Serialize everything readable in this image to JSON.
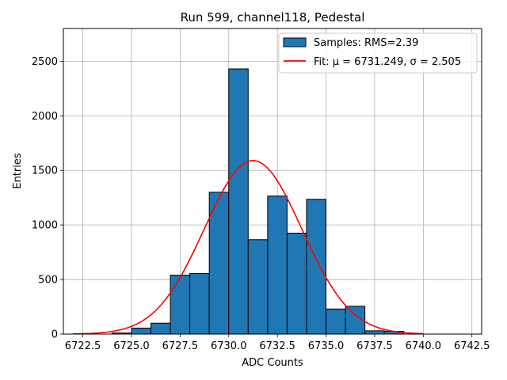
{
  "chart_data": {
    "type": "bar",
    "title": "Run 599, channel118, Pedestal",
    "xlabel": "ADC Counts",
    "ylabel": "Entries",
    "xlim": [
      6721.5,
      6743.0
    ],
    "ylim": [
      0,
      2800
    ],
    "xticks": [
      6722.5,
      6725.0,
      6727.5,
      6730.0,
      6732.5,
      6735.0,
      6737.5,
      6740.0,
      6742.5
    ],
    "xtick_labels": [
      "6722.5",
      "6725.0",
      "6727.5",
      "6730.0",
      "6732.5",
      "6735.0",
      "6737.5",
      "6740.0",
      "6742.5"
    ],
    "yticks": [
      0,
      500,
      1000,
      1500,
      2000,
      2500
    ],
    "ytick_labels": [
      "0",
      "500",
      "1000",
      "1500",
      "2000",
      "2500"
    ],
    "grid": true,
    "legend_position": "top-right",
    "series": [
      {
        "name": "Samples: RMS=2.39",
        "kind": "histogram",
        "color": "#1f77b4",
        "bins": [
          {
            "x0": 6724.0,
            "x1": 6725.0,
            "value": 10
          },
          {
            "x0": 6725.0,
            "x1": 6726.0,
            "value": 55
          },
          {
            "x0": 6726.0,
            "x1": 6727.0,
            "value": 100
          },
          {
            "x0": 6727.0,
            "x1": 6728.0,
            "value": 540
          },
          {
            "x0": 6728.0,
            "x1": 6729.0,
            "value": 555
          },
          {
            "x0": 6729.0,
            "x1": 6730.0,
            "value": 1300
          },
          {
            "x0": 6730.0,
            "x1": 6731.0,
            "value": 2430
          },
          {
            "x0": 6731.0,
            "x1": 6732.0,
            "value": 865
          },
          {
            "x0": 6732.0,
            "x1": 6733.0,
            "value": 1265
          },
          {
            "x0": 6733.0,
            "x1": 6734.0,
            "value": 925
          },
          {
            "x0": 6734.0,
            "x1": 6735.0,
            "value": 1235
          },
          {
            "x0": 6735.0,
            "x1": 6736.0,
            "value": 230
          },
          {
            "x0": 6736.0,
            "x1": 6737.0,
            "value": 255
          },
          {
            "x0": 6737.0,
            "x1": 6738.0,
            "value": 30
          },
          {
            "x0": 6738.0,
            "x1": 6739.0,
            "value": 25
          }
        ]
      },
      {
        "name": "Fit: μ = 6731.249, σ = 2.505",
        "kind": "gaussian",
        "color": "#ff0000",
        "mu": 6731.249,
        "sigma": 2.505,
        "amplitude": 1590,
        "x_range": [
          6722.0,
          6740.0
        ]
      }
    ]
  }
}
